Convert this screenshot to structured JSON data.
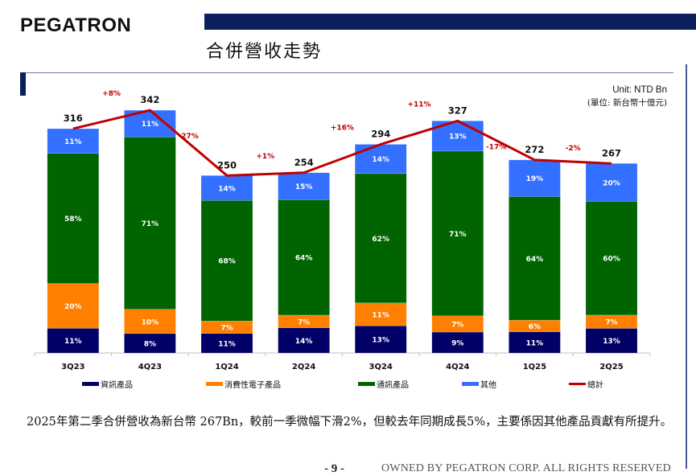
{
  "header": {
    "logo": "PEGATRON",
    "title": "合併營收走勢"
  },
  "unit": {
    "en": "Unit: NTD Bn",
    "zh": "(單位: 新台幣十億元)"
  },
  "colors": {
    "info": "#000066",
    "consumer": "#ff8000",
    "comm": "#006400",
    "other": "#3370ff",
    "total": "#c00000",
    "brand": "#0b1f5c"
  },
  "legend": [
    {
      "key": "info",
      "label": "資訊產品",
      "kind": "bar"
    },
    {
      "key": "consumer",
      "label": "消費性電子產品",
      "kind": "bar"
    },
    {
      "key": "comm",
      "label": "通訊產品",
      "kind": "bar"
    },
    {
      "key": "other",
      "label": "其他",
      "kind": "bar"
    },
    {
      "key": "total",
      "label": "總計",
      "kind": "line"
    }
  ],
  "chart_data": {
    "type": "bar",
    "stacked": true,
    "title": "合併營收走勢",
    "xlabel": "",
    "ylabel": "",
    "unit": "NTD Bn",
    "categories": [
      "3Q23",
      "4Q23",
      "1Q24",
      "2Q24",
      "3Q24",
      "4Q24",
      "1Q25",
      "2Q25"
    ],
    "series": [
      {
        "key": "info",
        "name": "資訊產品",
        "values": [
          11,
          8,
          11,
          14,
          13,
          9,
          11,
          13
        ],
        "unit": "%"
      },
      {
        "key": "consumer",
        "name": "消費性電子產品",
        "values": [
          20,
          10,
          7,
          7,
          11,
          7,
          6,
          7
        ],
        "unit": "%"
      },
      {
        "key": "comm",
        "name": "通訊產品",
        "values": [
          58,
          71,
          68,
          64,
          62,
          71,
          64,
          60
        ],
        "unit": "%"
      },
      {
        "key": "other",
        "name": "其他",
        "values": [
          11,
          11,
          14,
          15,
          14,
          13,
          19,
          20
        ],
        "unit": "%"
      }
    ],
    "total": {
      "name": "總計",
      "type": "line",
      "values": [
        316,
        342,
        250,
        254,
        294,
        327,
        272,
        267
      ]
    },
    "growth_labels": [
      "+8%",
      "-27%",
      "+1%",
      "+16%",
      "+11%",
      "-17%",
      "-2%"
    ],
    "ylim": [
      0,
      350
    ],
    "grid": false,
    "legend_position": "bottom"
  },
  "summary": "2025年第二季合併營收為新台幣 267Bn，較前一季微幅下滑2%，但較去年同期成長5%，主要係因其他產品貢獻有所提升。",
  "footer": {
    "page": "- 9 -",
    "copyright": "OWNED BY PEGATRON CORP. ALL RIGHTS RESERVED"
  }
}
